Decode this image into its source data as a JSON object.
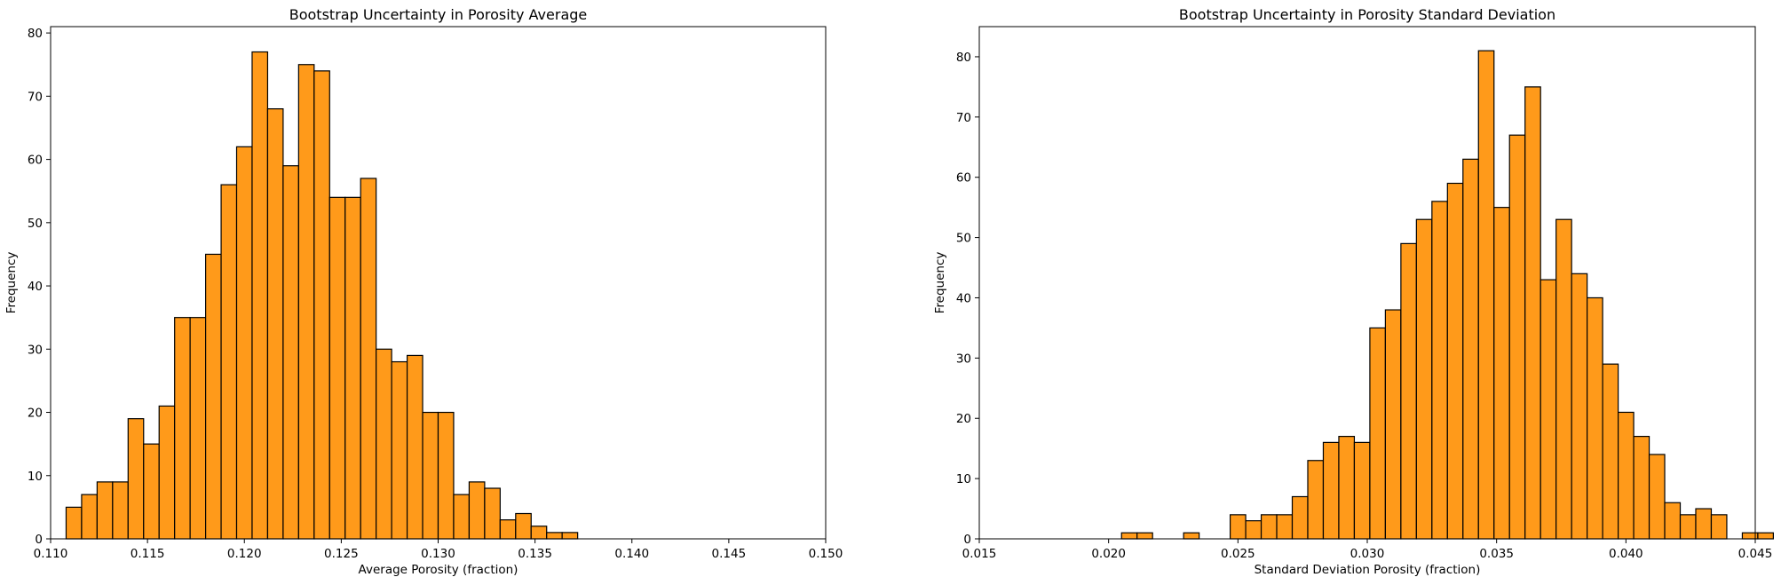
{
  "chart_data": [
    {
      "type": "bar",
      "subtype": "histogram",
      "title": "Bootstrap Uncertainty in Porosity Average",
      "xlabel": "Average Porosity (fraction)",
      "ylabel": "Frequency",
      "xlim": [
        0.11,
        0.15
      ],
      "ylim": [
        0,
        81
      ],
      "xticks": [
        0.11,
        0.115,
        0.12,
        0.125,
        0.13,
        0.135,
        0.14,
        0.145,
        0.15
      ],
      "xtick_labels": [
        "0.110",
        "0.115",
        "0.120",
        "0.125",
        "0.130",
        "0.135",
        "0.140",
        "0.145",
        "0.150"
      ],
      "yticks": [
        0,
        10,
        20,
        30,
        40,
        50,
        60,
        70,
        80
      ],
      "ytick_labels": [
        "0",
        "10",
        "20",
        "30",
        "40",
        "50",
        "60",
        "70",
        "80"
      ],
      "bin_start": 0.1108,
      "bin_width": 0.0008,
      "values": [
        5,
        7,
        9,
        9,
        19,
        15,
        21,
        35,
        35,
        45,
        56,
        62,
        77,
        68,
        59,
        75,
        74,
        54,
        54,
        57,
        30,
        28,
        29,
        20,
        20,
        7,
        9,
        8,
        3,
        4,
        2,
        1,
        1
      ],
      "bar_color": "#ff9a1a",
      "edge_color": "#000000"
    },
    {
      "type": "bar",
      "subtype": "histogram",
      "title": "Bootstrap Uncertainty in Porosity Standard Deviation",
      "xlabel": "Standard Deviation Porosity (fraction)",
      "ylabel": "Frequency",
      "xlim": [
        0.015,
        0.045
      ],
      "ylim": [
        0,
        85
      ],
      "xticks": [
        0.015,
        0.02,
        0.025,
        0.03,
        0.035,
        0.04,
        0.045
      ],
      "xtick_labels": [
        "0.015",
        "0.020",
        "0.025",
        "0.030",
        "0.035",
        "0.040",
        "0.045"
      ],
      "yticks": [
        0,
        10,
        20,
        30,
        40,
        50,
        60,
        70,
        80
      ],
      "ytick_labels": [
        "0",
        "10",
        "20",
        "30",
        "40",
        "50",
        "60",
        "70",
        "80"
      ],
      "bin_start": 0.0205,
      "bin_width": 0.0006,
      "values": [
        1,
        1,
        0,
        0,
        1,
        0,
        0,
        4,
        3,
        4,
        4,
        7,
        13,
        16,
        17,
        16,
        35,
        38,
        49,
        53,
        56,
        59,
        63,
        81,
        55,
        67,
        75,
        43,
        53,
        44,
        40,
        29,
        21,
        17,
        14,
        6,
        4,
        5,
        4,
        0,
        1,
        1
      ],
      "bar_color": "#ff9a1a",
      "edge_color": "#000000"
    }
  ]
}
